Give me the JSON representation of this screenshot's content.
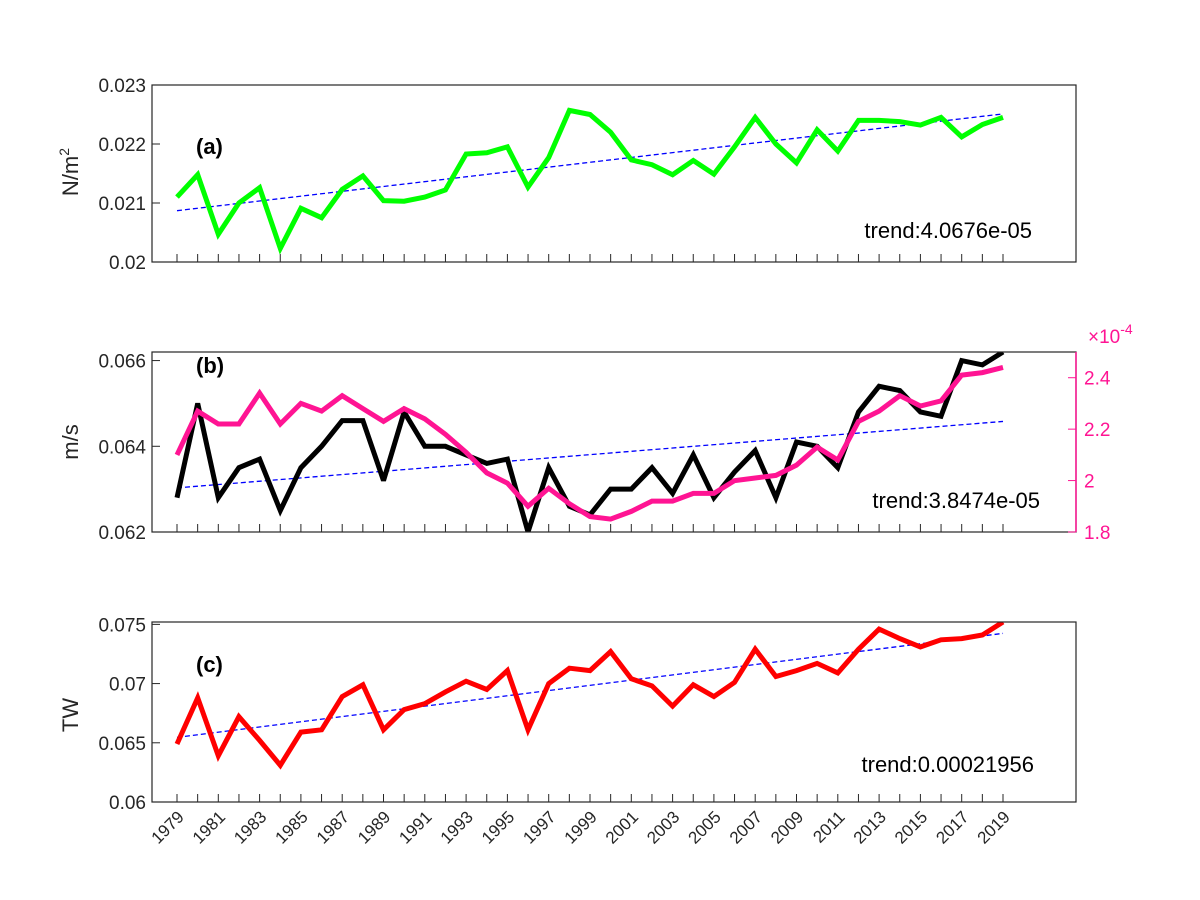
{
  "chart_data": [
    {
      "type": "line",
      "panel_label": "(a)",
      "ylabel_base": "N/m",
      "ylabel_sup": "2",
      "ylim": [
        0.02,
        0.023
      ],
      "yticks": [
        "0.02",
        "0.021",
        "0.022",
        "0.023"
      ],
      "x": [
        1979,
        1980,
        1981,
        1982,
        1983,
        1984,
        1985,
        1986,
        1987,
        1988,
        1989,
        1990,
        1991,
        1992,
        1993,
        1994,
        1995,
        1996,
        1997,
        1998,
        1999,
        2000,
        2001,
        2002,
        2003,
        2004,
        2005,
        2006,
        2007,
        2008,
        2009,
        2010,
        2011,
        2012,
        2013,
        2014,
        2015,
        2016,
        2017,
        2018,
        2019
      ],
      "series": [
        {
          "color": "#00ff00",
          "values": [
            0.0211,
            0.02148,
            0.02047,
            0.021,
            0.02126,
            0.02023,
            0.02091,
            0.02075,
            0.02123,
            0.02146,
            0.02104,
            0.02103,
            0.0211,
            0.02122,
            0.02183,
            0.02185,
            0.02195,
            0.02127,
            0.02177,
            0.02257,
            0.0225,
            0.0222,
            0.02173,
            0.02165,
            0.02148,
            0.02172,
            0.02149,
            0.02195,
            0.02245,
            0.022,
            0.02168,
            0.02224,
            0.02188,
            0.0224,
            0.0224,
            0.02238,
            0.02232,
            0.02245,
            0.02212,
            0.02233,
            0.02245
          ]
        }
      ],
      "trendline": {
        "color": "#0000ff",
        "start": 0.02087,
        "end": 0.02251
      },
      "annotation": "trend:4.0676e-05",
      "grid": false
    },
    {
      "type": "line",
      "panel_label": "(b)",
      "ylabel": "m/s",
      "ylim": [
        0.062,
        0.0662
      ],
      "yticks": [
        "0.062",
        "0.064",
        "0.066"
      ],
      "right_axis": {
        "color": "#ff1493",
        "ylim": [
          1.8,
          2.5
        ],
        "yticks": [
          "1.8",
          "2",
          "2.2",
          "2.4"
        ],
        "exponent_prefix": "×10",
        "exponent": "-4"
      },
      "x": [
        1979,
        1980,
        1981,
        1982,
        1983,
        1984,
        1985,
        1986,
        1987,
        1988,
        1989,
        1990,
        1991,
        1992,
        1993,
        1994,
        1995,
        1996,
        1997,
        1998,
        1999,
        2000,
        2001,
        2002,
        2003,
        2004,
        2005,
        2006,
        2007,
        2008,
        2009,
        2010,
        2011,
        2012,
        2013,
        2014,
        2015,
        2016,
        2017,
        2018,
        2019
      ],
      "series": [
        {
          "color": "#000000",
          "axis": "left",
          "values": [
            0.0628,
            0.065,
            0.0628,
            0.0635,
            0.0637,
            0.0625,
            0.0635,
            0.064,
            0.0646,
            0.0646,
            0.0632,
            0.0648,
            0.064,
            0.064,
            0.0638,
            0.0636,
            0.0637,
            0.062,
            0.0635,
            0.0626,
            0.0624,
            0.063,
            0.063,
            0.0635,
            0.0629,
            0.0638,
            0.0628,
            0.0634,
            0.0639,
            0.0628,
            0.0641,
            0.064,
            0.0635,
            0.0648,
            0.0654,
            0.0653,
            0.0648,
            0.0647,
            0.066,
            0.0659,
            0.0662
          ]
        },
        {
          "color": "#ff1493",
          "axis": "right",
          "values": [
            2.1,
            2.27,
            2.22,
            2.22,
            2.34,
            2.22,
            2.3,
            2.27,
            2.33,
            2.28,
            2.23,
            2.28,
            2.24,
            2.18,
            2.11,
            2.03,
            1.99,
            1.9,
            1.97,
            1.91,
            1.86,
            1.85,
            1.88,
            1.92,
            1.92,
            1.95,
            1.95,
            2.0,
            2.01,
            2.02,
            2.06,
            2.13,
            2.08,
            2.23,
            2.27,
            2.33,
            2.29,
            2.31,
            2.41,
            2.42,
            2.44
          ]
        }
      ],
      "trendline": {
        "color": "#0000ff",
        "start": 0.06303,
        "end": 0.06458
      },
      "annotation": "trend:3.8474e-05",
      "grid": false
    },
    {
      "type": "line",
      "panel_label": "(c)",
      "ylabel": "TW",
      "ylim": [
        0.06,
        0.0752
      ],
      "yticks": [
        "0.06",
        "0.065",
        "0.07",
        "0.075"
      ],
      "x": [
        1979,
        1980,
        1981,
        1982,
        1983,
        1984,
        1985,
        1986,
        1987,
        1988,
        1989,
        1990,
        1991,
        1992,
        1993,
        1994,
        1995,
        1996,
        1997,
        1998,
        1999,
        2000,
        2001,
        2002,
        2003,
        2004,
        2005,
        2006,
        2007,
        2008,
        2009,
        2010,
        2011,
        2012,
        2013,
        2014,
        2015,
        2016,
        2017,
        2018,
        2019
      ],
      "series": [
        {
          "color": "#ff0000",
          "values": [
            0.0649,
            0.0688,
            0.0639,
            0.0672,
            0.0652,
            0.0631,
            0.0659,
            0.0661,
            0.0689,
            0.0699,
            0.0661,
            0.0678,
            0.0683,
            0.0693,
            0.0702,
            0.0695,
            0.0711,
            0.0661,
            0.07,
            0.0713,
            0.0711,
            0.0727,
            0.0704,
            0.0698,
            0.0681,
            0.0699,
            0.0689,
            0.0701,
            0.0729,
            0.0706,
            0.0711,
            0.0717,
            0.0709,
            0.0729,
            0.0746,
            0.0738,
            0.0731,
            0.0737,
            0.0738,
            0.0741,
            0.0752
          ]
        }
      ],
      "trendline": {
        "color": "#0000ff",
        "start": 0.06546,
        "end": 0.07424
      },
      "annotation": "trend:0.00021956",
      "grid": false
    }
  ],
  "x_tick_labels": [
    "1979",
    "1981",
    "1983",
    "1985",
    "1987",
    "1989",
    "1991",
    "1993",
    "1995",
    "1997",
    "1999",
    "2001",
    "2003",
    "2005",
    "2007",
    "2009",
    "2011",
    "2013",
    "2015",
    "2017",
    "2019"
  ]
}
